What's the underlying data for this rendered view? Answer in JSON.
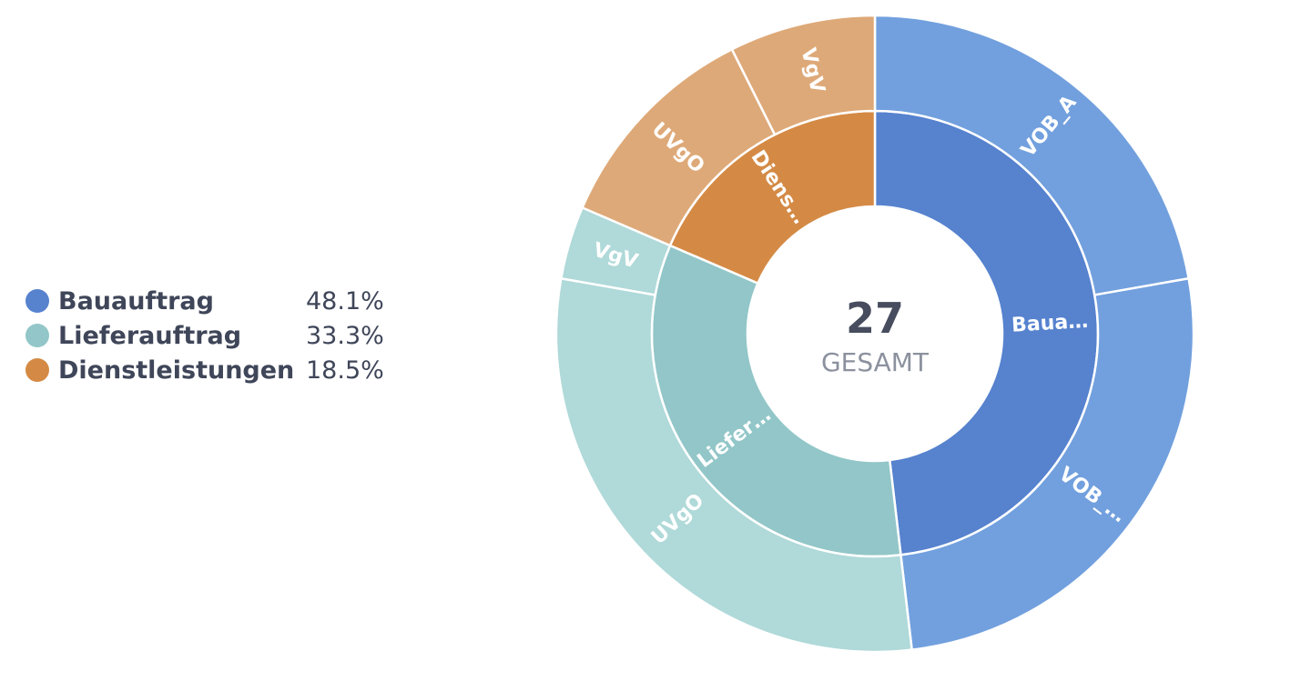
{
  "chart_data": {
    "type": "sunburst",
    "total": "27",
    "total_caption": "GESAMT",
    "categories": [
      {
        "name": "Bauauftrag",
        "label": "Baua…",
        "percent": "48.1%",
        "count": 13,
        "color": "#5682ce",
        "children": [
          {
            "name": "VOB_A",
            "label": "VOB_A",
            "count": 6,
            "color": "#72a0de"
          },
          {
            "name": "VOB_…",
            "label": "VOB_…",
            "count": 7,
            "color": "#72a0de"
          }
        ]
      },
      {
        "name": "Lieferauftrag",
        "label": "Liefer…",
        "percent": "33.3%",
        "count": 9,
        "color": "#92c6c8",
        "children": [
          {
            "name": "UVgO",
            "label": "UVgO",
            "count": 8,
            "color": "#b0d9d9"
          },
          {
            "name": "VgV",
            "label": "VgV",
            "count": 1,
            "color": "#b0d9d9"
          }
        ]
      },
      {
        "name": "Dienstleistungen",
        "label": "Diens…",
        "percent": "18.5%",
        "count": 5,
        "color": "#d48a45",
        "children": [
          {
            "name": "UVgO",
            "label": "UVgO",
            "count": 3,
            "color": "#dea978"
          },
          {
            "name": "VgV",
            "label": "VgV",
            "count": 2,
            "color": "#dea978"
          }
        ]
      }
    ]
  }
}
